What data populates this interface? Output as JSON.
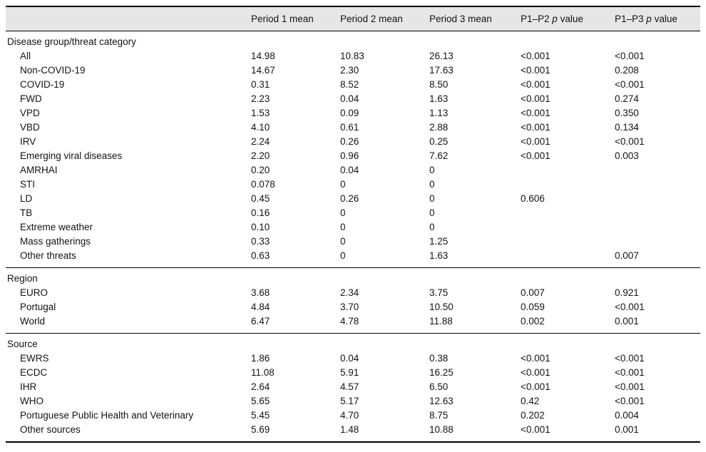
{
  "header": {
    "columns": [
      {
        "pre": "Period 1 mean",
        "it": "",
        "post": ""
      },
      {
        "pre": "Period 2 mean",
        "it": "",
        "post": ""
      },
      {
        "pre": "Period 3 mean",
        "it": "",
        "post": ""
      },
      {
        "pre": "P1–P2 ",
        "it": "p",
        "post": " value"
      },
      {
        "pre": "P1–P3 ",
        "it": "p",
        "post": " value"
      }
    ]
  },
  "sections": [
    {
      "heading": "Disease group/threat category",
      "rows": [
        {
          "label": "All",
          "values": [
            "14.98",
            "10.83",
            "26.13",
            "<0.001",
            "<0.001"
          ]
        },
        {
          "label": "Non-COVID-19",
          "values": [
            "14.67",
            "2.30",
            "17.63",
            "<0.001",
            "0.208"
          ]
        },
        {
          "label": "COVID-19",
          "values": [
            "0.31",
            "8.52",
            "8.50",
            "<0.001",
            "<0.001"
          ]
        },
        {
          "label": "FWD",
          "values": [
            "2.23",
            "0.04",
            "1.63",
            "<0.001",
            "0.274"
          ]
        },
        {
          "label": "VPD",
          "values": [
            "1.53",
            "0.09",
            "1.13",
            "<0.001",
            "0.350"
          ]
        },
        {
          "label": "VBD",
          "values": [
            "4.10",
            "0.61",
            "2.88",
            "<0.001",
            "0.134"
          ]
        },
        {
          "label": "IRV",
          "values": [
            "2.24",
            "0.26",
            "0.25",
            "<0.001",
            "<0.001"
          ]
        },
        {
          "label": "Emerging viral diseases",
          "values": [
            "2.20",
            "0.96",
            "7.62",
            "<0.001",
            "0.003"
          ]
        },
        {
          "label": "AMRHAI",
          "values": [
            "0.20",
            "0.04",
            "0",
            "",
            ""
          ]
        },
        {
          "label": "STI",
          "values": [
            "0.078",
            "0",
            "0",
            "",
            ""
          ]
        },
        {
          "label": "LD",
          "values": [
            "0.45",
            "0.26",
            "0",
            "0.606",
            ""
          ]
        },
        {
          "label": "TB",
          "values": [
            "0.16",
            "0",
            "0",
            "",
            ""
          ]
        },
        {
          "label": "Extreme weather",
          "values": [
            "0.10",
            "0",
            "0",
            "",
            ""
          ]
        },
        {
          "label": "Mass gatherings",
          "values": [
            "0.33",
            "0",
            "1.25",
            "",
            ""
          ]
        },
        {
          "label": "Other threats",
          "values": [
            "0.63",
            "0",
            "1.63",
            "",
            "0.007"
          ]
        }
      ]
    },
    {
      "heading": "Region",
      "rows": [
        {
          "label": "EURO",
          "values": [
            "3.68",
            "2.34",
            "3.75",
            "0.007",
            "0.921"
          ]
        },
        {
          "label": "Portugal",
          "values": [
            "4.84",
            "3.70",
            "10.50",
            "0.059",
            "<0.001"
          ]
        },
        {
          "label": "World",
          "values": [
            "6.47",
            "4.78",
            "11.88",
            "0.002",
            "0.001"
          ]
        }
      ]
    },
    {
      "heading": "Source",
      "rows": [
        {
          "label": "EWRS",
          "values": [
            "1.86",
            "0.04",
            "0.38",
            "<0.001",
            "<0.001"
          ]
        },
        {
          "label": "ECDC",
          "values": [
            "11.08",
            "5.91",
            "16.25",
            "<0.001",
            "<0.001"
          ]
        },
        {
          "label": "IHR",
          "values": [
            "2.64",
            "4.57",
            "6.50",
            "<0.001",
            "<0.001"
          ]
        },
        {
          "label": "WHO",
          "values": [
            "5.65",
            "5.17",
            "12.63",
            "0.42",
            "<0.001"
          ]
        },
        {
          "label": "Portuguese Public Health and Veterinary",
          "values": [
            "5.45",
            "4.70",
            "8.75",
            "0.202",
            "0.004"
          ]
        },
        {
          "label": "Other sources",
          "values": [
            "5.69",
            "1.48",
            "10.88",
            "<0.001",
            "0.001"
          ]
        }
      ]
    }
  ],
  "colors": {
    "header_bg": "#e6e6e6",
    "rule": "#000000",
    "text": "#131313"
  }
}
